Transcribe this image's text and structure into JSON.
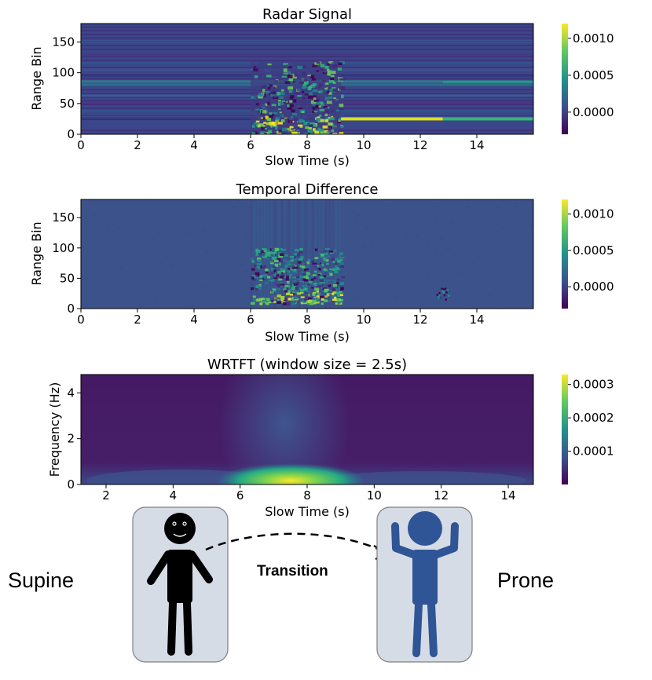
{
  "chart_data": [
    {
      "type": "heatmap",
      "title": "Radar Signal",
      "xlabel": "Slow Time (s)",
      "ylabel": "Range Bin",
      "xlim": [
        0,
        16
      ],
      "ylim": [
        0,
        180
      ],
      "xticks": [
        0,
        2,
        4,
        6,
        8,
        10,
        12,
        14
      ],
      "yticks": [
        0,
        50,
        100,
        150
      ],
      "colormap": "viridis",
      "colorbar": {
        "ticks": [
          0.0,
          0.0005,
          0.001
        ],
        "tick_labels": [
          "0.0000",
          "0.0005",
          "0.0010"
        ],
        "range": [
          -0.0003,
          0.0012
        ]
      },
      "features": [
        {
          "description": "stationary range lines across full time",
          "range_bins": [
            25,
            30,
            37,
            50,
            62,
            80,
            85,
            95,
            105,
            115,
            130,
            150
          ]
        },
        {
          "description": "motion clutter",
          "time": [
            6,
            9.2
          ],
          "range": [
            0,
            120
          ]
        },
        {
          "description": "strong return",
          "time": [
            9.2,
            12.8
          ],
          "range_bin": 25,
          "value": 0.001
        },
        {
          "description": "moderate return",
          "time": [
            12.8,
            16
          ],
          "range_bin": 25,
          "value": 0.0006
        }
      ]
    },
    {
      "type": "heatmap",
      "title": "Temporal Difference",
      "xlabel": "Slow Time (s)",
      "ylabel": "Range Bin",
      "xlim": [
        0,
        16
      ],
      "ylim": [
        0,
        180
      ],
      "xticks": [
        0,
        2,
        4,
        6,
        8,
        10,
        12,
        14
      ],
      "yticks": [
        0,
        50,
        100,
        150
      ],
      "colormap": "viridis",
      "colorbar": {
        "ticks": [
          0.0,
          0.0005,
          0.001
        ],
        "tick_labels": [
          "0.0000",
          "0.0005",
          "0.0010"
        ],
        "range": [
          -0.0003,
          0.0012
        ]
      },
      "features": [
        {
          "description": "motion activity",
          "time": [
            6,
            9.2
          ],
          "range": [
            10,
            100
          ]
        },
        {
          "description": "small transient",
          "time": [
            12.5,
            13
          ],
          "range": [
            15,
            35
          ]
        }
      ]
    },
    {
      "type": "heatmap",
      "title": "WRTFT (window size = 2.5s)",
      "xlabel": "Slow Time (s)",
      "ylabel": "Frequency (Hz)",
      "xlim": [
        1.25,
        14.75
      ],
      "ylim": [
        0,
        4.8
      ],
      "xticks": [
        2,
        4,
        6,
        8,
        10,
        12,
        14
      ],
      "yticks": [
        0,
        2,
        4
      ],
      "colormap": "viridis",
      "colorbar": {
        "ticks": [
          0.0001,
          0.0002,
          0.0003
        ],
        "tick_labels": [
          "0.0001",
          "0.0002",
          "0.0003"
        ],
        "range": [
          0,
          0.00033
        ]
      },
      "features": [
        {
          "description": "energy peak",
          "time": 7.2,
          "frequency": 0.2,
          "value": 0.0003
        },
        {
          "description": "broadband column",
          "time": [
            5.5,
            9
          ],
          "frequency": [
            0,
            4.8
          ]
        }
      ]
    }
  ],
  "illustration": {
    "left_label": "Supine",
    "middle_label": "Transition",
    "right_label": "Prone",
    "colors": {
      "supine_figure": "#000000",
      "prone_figure": "#2f5597",
      "card_fill": "#d6dce5",
      "card_stroke": "#7f7f7f"
    }
  }
}
